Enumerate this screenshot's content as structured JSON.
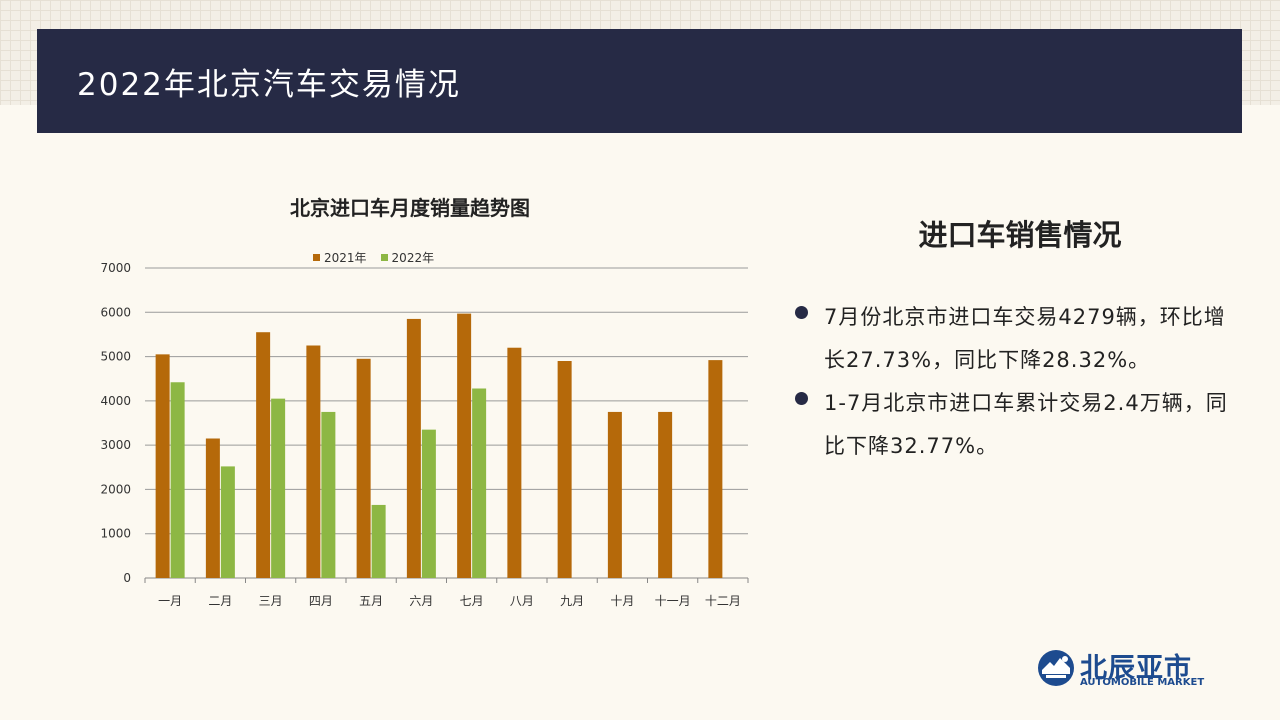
{
  "header": {
    "title": "2022年北京汽车交易情况"
  },
  "chart_data": {
    "type": "bar",
    "title": "北京进口车月度销量趋势图",
    "categories": [
      "一月",
      "二月",
      "三月",
      "四月",
      "五月",
      "六月",
      "七月",
      "八月",
      "九月",
      "十月",
      "十一月",
      "十二月"
    ],
    "series": [
      {
        "name": "2021年",
        "color": "#b5690a",
        "values": [
          5050,
          3150,
          5550,
          5250,
          4950,
          5850,
          5970,
          5200,
          4900,
          3750,
          3750,
          4920
        ]
      },
      {
        "name": "2022年",
        "color": "#8db744",
        "values": [
          4420,
          2520,
          4050,
          3750,
          1650,
          3350,
          4279,
          null,
          null,
          null,
          null,
          null
        ]
      }
    ],
    "ylim": [
      0,
      7000
    ],
    "yticks": [
      0,
      1000,
      2000,
      3000,
      4000,
      5000,
      6000,
      7000
    ],
    "grid": true,
    "legend": "top"
  },
  "right_panel": {
    "title": "进口车销售情况",
    "bullets": [
      "7月份北京市进口车交易4279辆，环比增长27.73%，同比下降28.32%。",
      "1-7月北京市进口车累计交易2.4万辆，同比下降32.77%。"
    ]
  },
  "logo": {
    "cn": "北辰亚市",
    "en": "AUTOMOBILE MARKET"
  }
}
